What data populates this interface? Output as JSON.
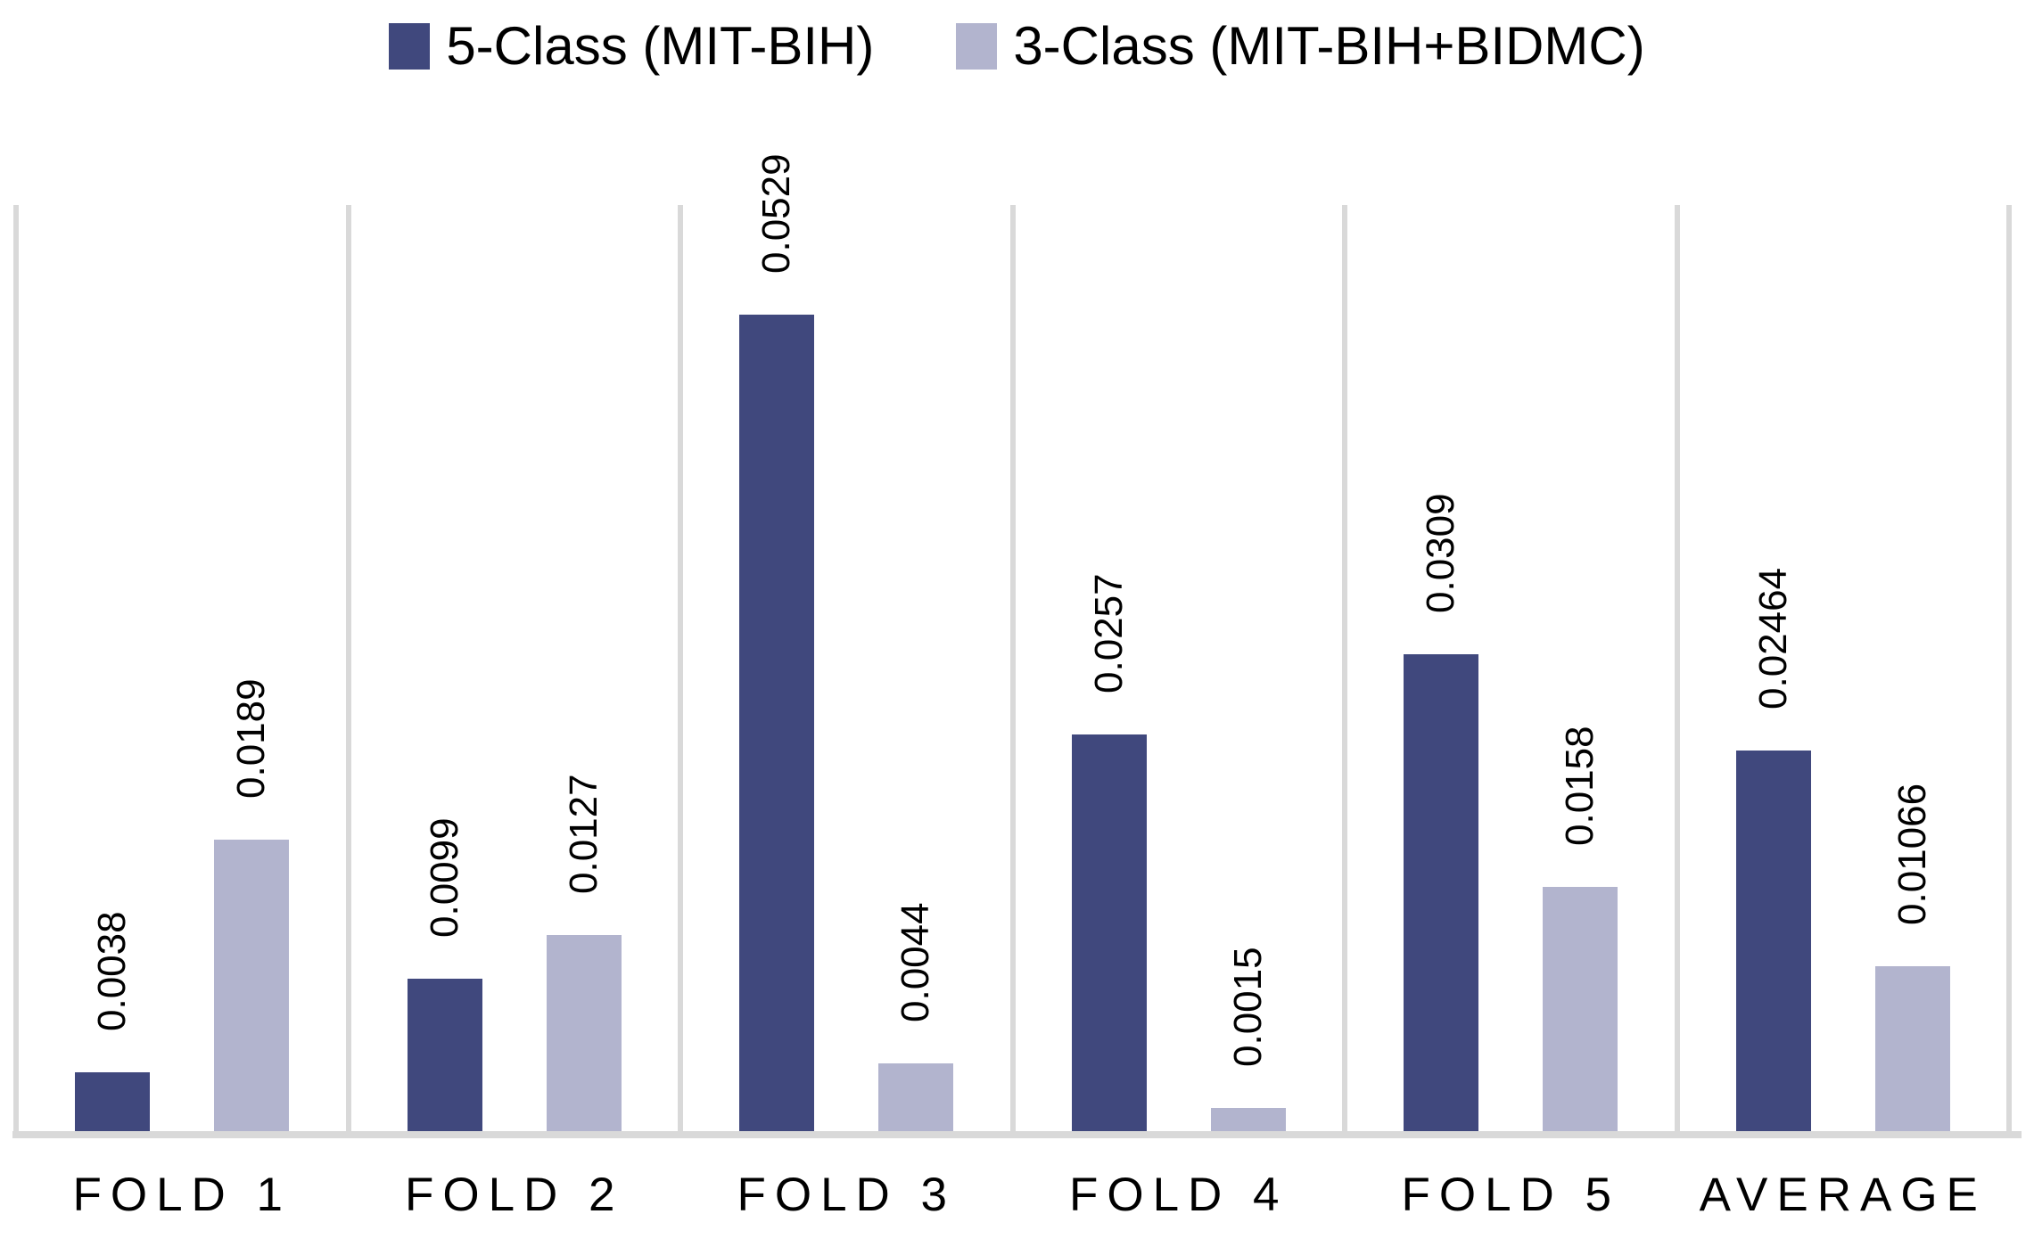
{
  "figure": {
    "background": "#ffffff",
    "text_color": "#000000"
  },
  "legend": {
    "position": "top-center",
    "items": [
      {
        "label": "5-Class (MIT-BIH)",
        "color": "#40487D",
        "swatch": "square"
      },
      {
        "label": "3-Class (MIT-BIH+BIDMC)",
        "color": "#B2B4CE",
        "swatch": "square"
      }
    ]
  },
  "chart_data": {
    "type": "bar",
    "orientation": "vertical",
    "title": "",
    "xlabel": "",
    "ylabel": "",
    "categories": [
      "FOLD 1",
      "FOLD 2",
      "FOLD 3",
      "FOLD 4",
      "FOLD 5",
      "AVERAGE"
    ],
    "series": [
      {
        "name": "5-Class (MIT-BIH)",
        "color": "#40487D",
        "values": [
          0.0038,
          0.0099,
          0.0529,
          0.0257,
          0.0309,
          0.02464
        ],
        "labels": [
          "0.0038",
          "0.0099",
          "0.0529",
          "0.0257",
          "0.0309",
          "0.02464"
        ]
      },
      {
        "name": "3-Class (MIT-BIH+BIDMC)",
        "color": "#B2B4CE",
        "values": [
          0.0189,
          0.0127,
          0.0044,
          0.0015,
          0.0158,
          0.01066
        ],
        "labels": [
          "0.0189",
          "0.0127",
          "0.0044",
          "0.0015",
          "0.0158",
          "0.01066"
        ]
      }
    ],
    "ylim": [
      0,
      0.06
    ],
    "y_axis_visible": false,
    "data_label_rotation": 90,
    "gridlines": {
      "vertical_category_separators": true,
      "color": "#D9D9D9"
    },
    "axis_line_color": "#D9D9D9",
    "legend_position": "top"
  }
}
